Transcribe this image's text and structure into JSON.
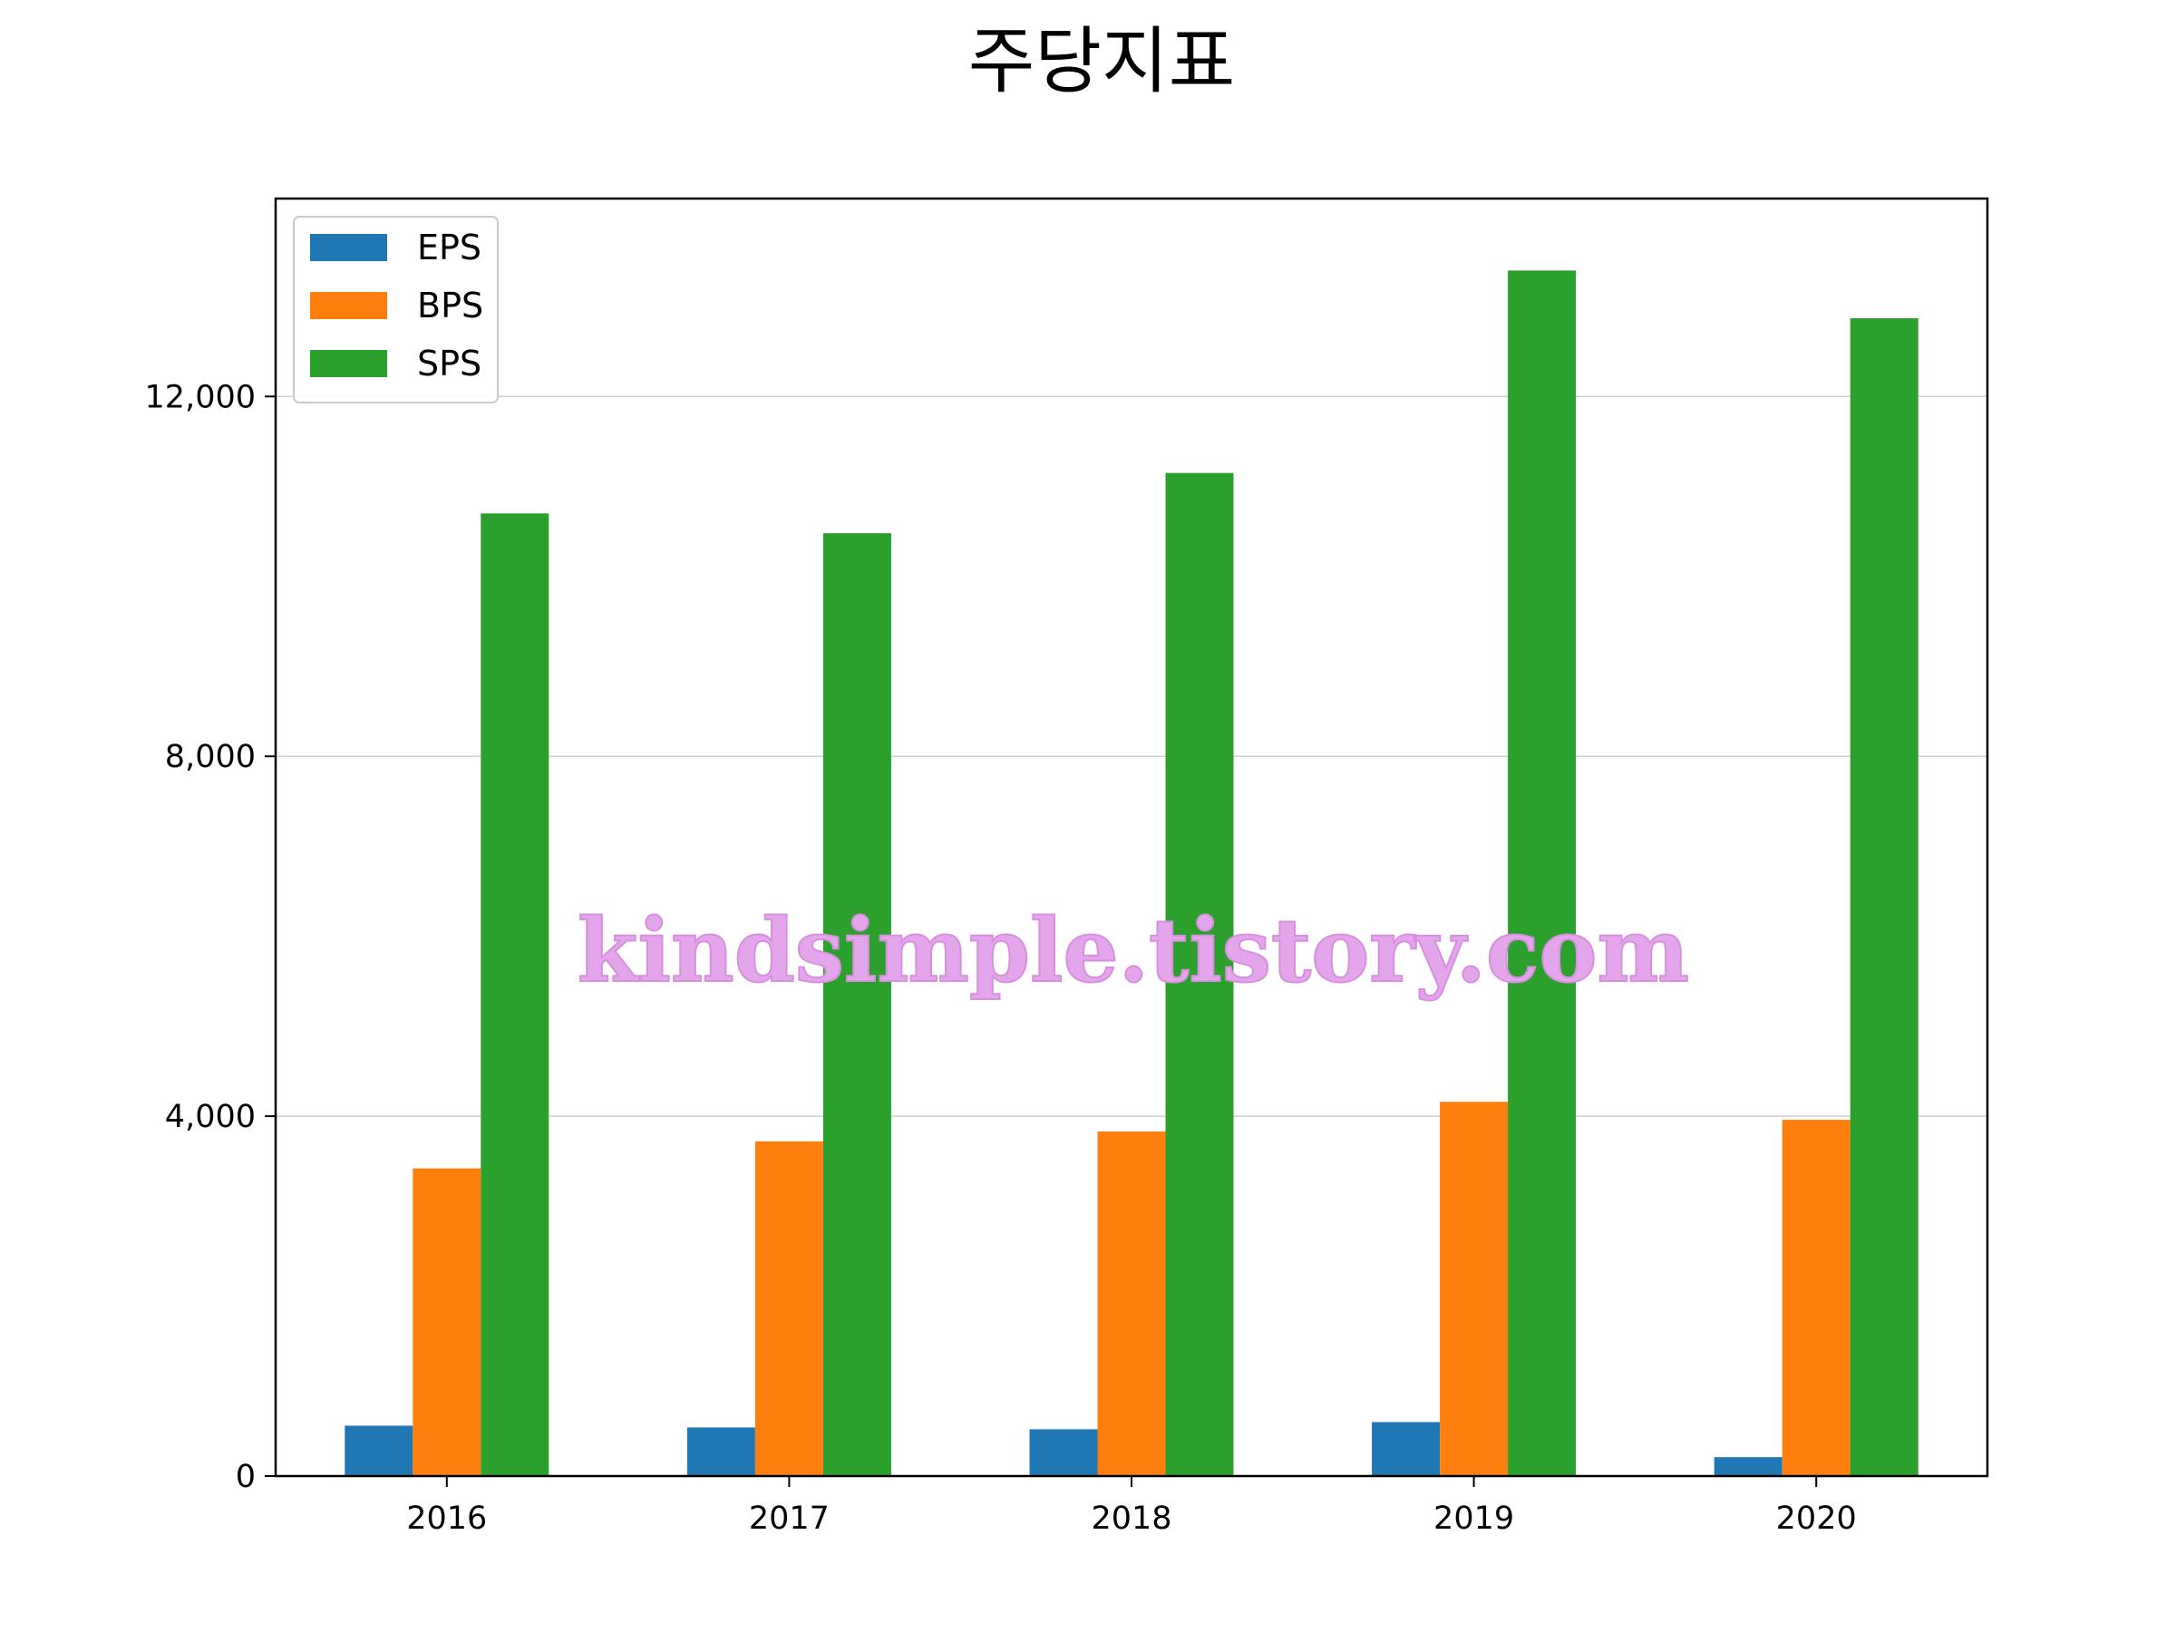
{
  "chart_data": {
    "type": "bar",
    "title": "주당지표",
    "xlabel": "",
    "ylabel": "",
    "categories": [
      "2016",
      "2017",
      "2018",
      "2019",
      "2020"
    ],
    "series": [
      {
        "name": "EPS",
        "color": "#1f77b4",
        "values": [
          560,
          540,
          520,
          600,
          210
        ]
      },
      {
        "name": "BPS",
        "color": "#ff7f0e",
        "values": [
          3420,
          3720,
          3830,
          4160,
          3960
        ]
      },
      {
        "name": "SPS",
        "color": "#2ca02c",
        "values": [
          10700,
          10480,
          11150,
          13400,
          12870
        ]
      }
    ],
    "ylim": [
      0,
      14200
    ],
    "yticks": [
      0,
      4000,
      8000,
      12000
    ],
    "ytick_labels": [
      "0",
      "4,000",
      "8,000",
      "12,000"
    ],
    "grid": "horizontal",
    "legend_position": "top-left"
  },
  "watermark": "kindsimple.tistory.com"
}
